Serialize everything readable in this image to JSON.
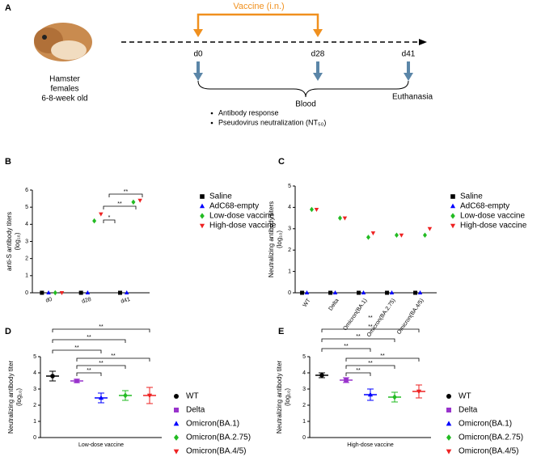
{
  "panel_a": {
    "label": "A",
    "vaccine": "Vaccine (i.n.)",
    "days": [
      "d0",
      "d28",
      "d41"
    ],
    "animal": [
      "Hamster",
      "females",
      "6-8-week old"
    ],
    "blood": "Blood",
    "euthanasia": "Euthanasia",
    "readouts": [
      "Antibody response",
      "Pseudovirus neutralization (NT₅₀)"
    ]
  },
  "chart_data": [
    {
      "type": "dot",
      "panel": "B",
      "y_label": [
        "anti-S antibody titers",
        "(log₁₀)"
      ],
      "categories": [
        "d0",
        "d28",
        "d41"
      ],
      "series": [
        {
          "name": "Saline",
          "color": "#000000",
          "marker": "square",
          "values": [
            0,
            0,
            0
          ]
        },
        {
          "name": "AdC68-empty",
          "color": "#0000ff",
          "marker": "triangle",
          "values": [
            0,
            0,
            0
          ]
        },
        {
          "name": "Low-dose vaccine",
          "color": "#22bb22",
          "marker": "diamond",
          "values": [
            0,
            4.2,
            5.3
          ]
        },
        {
          "name": "High-dose vaccine",
          "color": "#ee2222",
          "marker": "triangle-down",
          "values": [
            0,
            4.6,
            5.4
          ]
        }
      ],
      "ylim": [
        0,
        6
      ],
      "yticks": [
        0,
        1,
        2,
        3,
        4,
        5,
        6
      ],
      "annotations": [
        "*",
        "**",
        "**"
      ]
    },
    {
      "type": "dot",
      "panel": "C",
      "y_label": [
        "Neutralizing antibody titers",
        "(log₁₀)"
      ],
      "categories": [
        "WT",
        "Delta",
        "Omicron(BA.1)",
        "Omicron(BA.2.75)",
        "Omicron(BA.4/5)"
      ],
      "series": [
        {
          "name": "Saline",
          "color": "#000000",
          "marker": "square",
          "values": [
            0,
            0,
            0,
            0,
            0
          ]
        },
        {
          "name": "AdC68-empty",
          "color": "#0000ff",
          "marker": "triangle",
          "values": [
            0,
            0,
            0,
            0,
            0
          ]
        },
        {
          "name": "Low-dose vaccine",
          "color": "#22bb22",
          "marker": "diamond",
          "values": [
            3.9,
            3.5,
            2.6,
            2.7,
            2.7
          ]
        },
        {
          "name": "High-dose vaccine",
          "color": "#ee2222",
          "marker": "triangle-down",
          "values": [
            3.9,
            3.5,
            2.8,
            2.7,
            3.0
          ]
        }
      ],
      "ylim": [
        0,
        5
      ],
      "yticks": [
        0,
        1,
        2,
        3,
        4,
        5
      ],
      "annotations": []
    },
    {
      "type": "mean_error",
      "panel": "D",
      "y_label": [
        "Neutralizing antibody titer",
        "(log₁₀)"
      ],
      "x_label": "Low-dose vaccine",
      "categories": [
        "WT",
        "Delta",
        "Omicron(BA.1)",
        "Omicron(BA.2.75)",
        "Omicron(BA.4/5)"
      ],
      "values": [
        3.8,
        3.5,
        2.45,
        2.6,
        2.6
      ],
      "errors": [
        0.3,
        0.1,
        0.3,
        0.3,
        0.5
      ],
      "colors": [
        "#000000",
        "#9933cc",
        "#0000ff",
        "#22bb22",
        "#ee2222"
      ],
      "markers": [
        "circle",
        "square",
        "triangle",
        "diamond",
        "triangle-down"
      ],
      "ylim": [
        0,
        5
      ],
      "yticks": [
        0,
        1,
        2,
        3,
        4,
        5
      ],
      "annotations": [
        "**",
        "**",
        "**",
        "**",
        "**",
        "**"
      ]
    },
    {
      "type": "mean_error",
      "panel": "E",
      "y_label": [
        "Neutralizing antibody titer",
        "(log₁₀)"
      ],
      "x_label": "High-dose vaccine",
      "categories": [
        "WT",
        "Delta",
        "Omicron(BA.1)",
        "Omicron(BA.2.75)",
        "Omicron(BA.4/5)"
      ],
      "values": [
        3.85,
        3.55,
        2.65,
        2.5,
        2.85
      ],
      "errors": [
        0.15,
        0.15,
        0.35,
        0.3,
        0.4
      ],
      "colors": [
        "#000000",
        "#9933cc",
        "#0000ff",
        "#22bb22",
        "#ee2222"
      ],
      "markers": [
        "circle",
        "square",
        "triangle",
        "diamond",
        "triangle-down"
      ],
      "ylim": [
        0,
        5
      ],
      "yticks": [
        0,
        1,
        2,
        3,
        4,
        5
      ],
      "annotations": [
        "**",
        "**",
        "**",
        "**",
        "**",
        "**",
        "**"
      ]
    }
  ]
}
